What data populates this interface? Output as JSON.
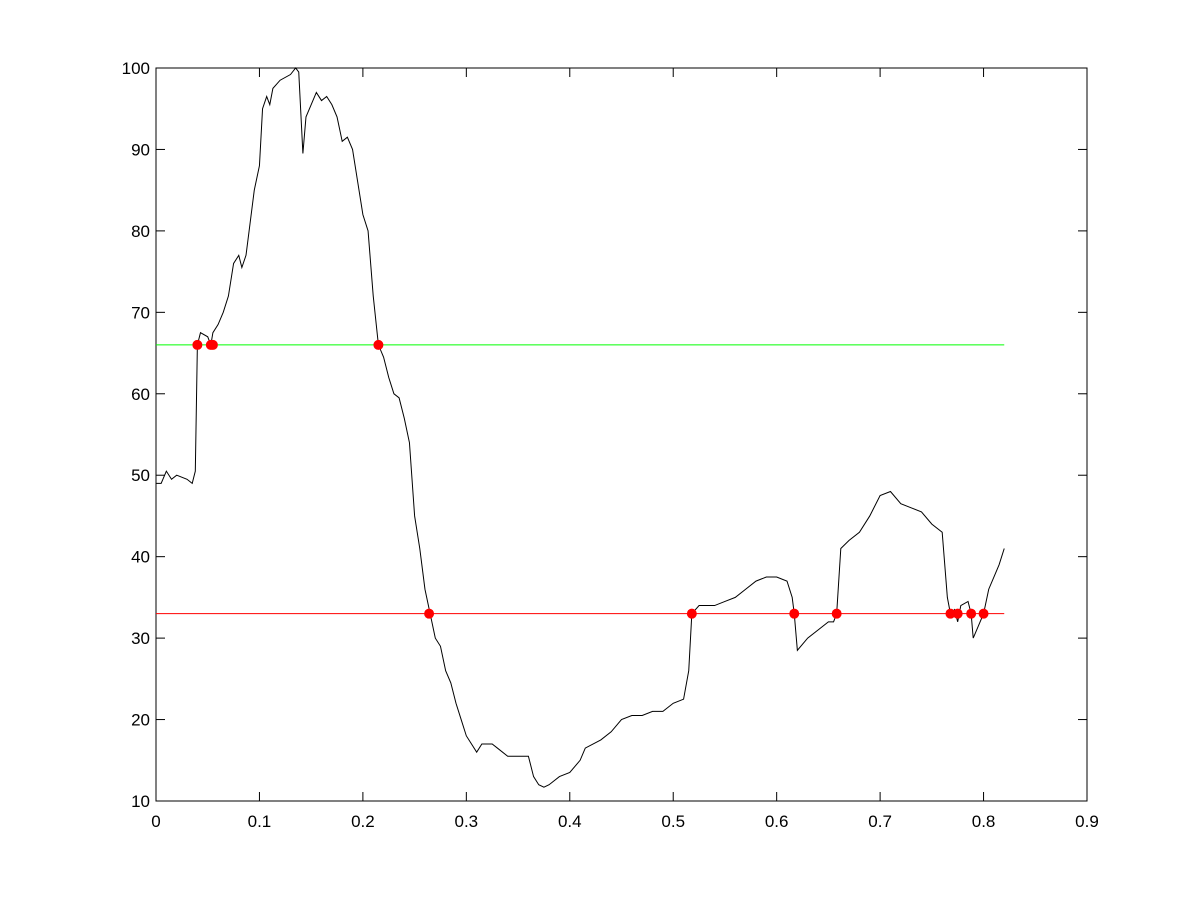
{
  "chart_data": {
    "type": "line",
    "xlim": [
      0,
      0.9
    ],
    "ylim": [
      10,
      100
    ],
    "xticks": [
      0,
      0.1,
      0.2,
      0.3,
      0.4,
      0.5,
      0.6,
      0.7,
      0.8,
      0.9
    ],
    "yticks": [
      10,
      20,
      30,
      40,
      50,
      60,
      70,
      80,
      90,
      100
    ],
    "grid": false,
    "series": [
      {
        "color": "#000000",
        "style": "line",
        "x": [
          0,
          0.005,
          0.01,
          0.015,
          0.02,
          0.03,
          0.035,
          0.038,
          0.04,
          0.043,
          0.05,
          0.053,
          0.055,
          0.06,
          0.065,
          0.07,
          0.075,
          0.08,
          0.083,
          0.087,
          0.09,
          0.095,
          0.1,
          0.103,
          0.107,
          0.11,
          0.113,
          0.12,
          0.13,
          0.135,
          0.138,
          0.142,
          0.145,
          0.15,
          0.155,
          0.16,
          0.165,
          0.17,
          0.175,
          0.18,
          0.185,
          0.19,
          0.195,
          0.2,
          0.205,
          0.21,
          0.215,
          0.22,
          0.225,
          0.23,
          0.235,
          0.24,
          0.245,
          0.25,
          0.255,
          0.26,
          0.265,
          0.27,
          0.275,
          0.28,
          0.285,
          0.29,
          0.295,
          0.3,
          0.305,
          0.31,
          0.315,
          0.325,
          0.33,
          0.34,
          0.35,
          0.36,
          0.365,
          0.37,
          0.375,
          0.38,
          0.39,
          0.4,
          0.41,
          0.415,
          0.43,
          0.44,
          0.45,
          0.46,
          0.47,
          0.48,
          0.49,
          0.5,
          0.51,
          0.515,
          0.518,
          0.525,
          0.54,
          0.55,
          0.56,
          0.57,
          0.58,
          0.59,
          0.6,
          0.61,
          0.615,
          0.617,
          0.62,
          0.63,
          0.64,
          0.65,
          0.655,
          0.658,
          0.662,
          0.67,
          0.68,
          0.69,
          0.7,
          0.71,
          0.72,
          0.73,
          0.74,
          0.75,
          0.76,
          0.765,
          0.768,
          0.772,
          0.775,
          0.778,
          0.785,
          0.788,
          0.79,
          0.795,
          0.8,
          0.805,
          0.81,
          0.815,
          0.82
        ],
        "values": [
          49,
          49,
          50.5,
          49.5,
          50,
          49.5,
          49,
          50.5,
          66,
          67.5,
          67,
          66,
          67.5,
          68.5,
          70,
          72,
          76,
          77,
          75.5,
          77,
          80,
          85,
          88,
          95,
          96.5,
          95.5,
          97.5,
          98.5,
          99.2,
          100,
          99.5,
          89.5,
          94,
          95.5,
          97,
          96,
          96.5,
          95.5,
          94,
          91,
          91.5,
          90,
          86,
          82,
          80,
          72,
          66,
          64.5,
          62,
          60,
          59.5,
          57,
          54,
          45,
          41,
          36,
          33,
          30,
          29,
          26,
          24.5,
          22,
          20,
          18,
          17,
          16,
          17,
          17,
          16.5,
          15.5,
          15.5,
          15.5,
          13,
          12,
          11.7,
          12,
          13,
          13.5,
          15,
          16.5,
          17.5,
          18.5,
          20,
          20.5,
          20.5,
          21,
          21,
          22,
          22.5,
          26,
          33,
          34,
          34,
          34.5,
          35,
          36,
          37,
          37.5,
          37.5,
          37,
          35,
          33,
          28.5,
          30,
          31,
          32,
          32,
          33,
          41,
          42,
          43,
          45,
          47.5,
          48,
          46.5,
          46,
          45.5,
          44,
          43,
          35,
          33,
          33.5,
          32,
          34,
          34.5,
          33,
          30,
          31.5,
          33,
          36,
          37.5,
          39,
          41
        ]
      },
      {
        "color": "#00ff00",
        "style": "line",
        "x": [
          0,
          0.82
        ],
        "values": [
          66,
          66
        ]
      },
      {
        "color": "#ff0000",
        "style": "line",
        "x": [
          0,
          0.82
        ],
        "values": [
          33,
          33
        ]
      },
      {
        "color": "#ff0000",
        "style": "markers",
        "x": [
          0.04,
          0.053,
          0.055,
          0.215,
          0.264,
          0.518,
          0.617,
          0.658,
          0.768,
          0.775,
          0.788,
          0.8
        ],
        "values": [
          66,
          66,
          66,
          66,
          33,
          33,
          33,
          33,
          33,
          33,
          33,
          33
        ]
      }
    ]
  }
}
